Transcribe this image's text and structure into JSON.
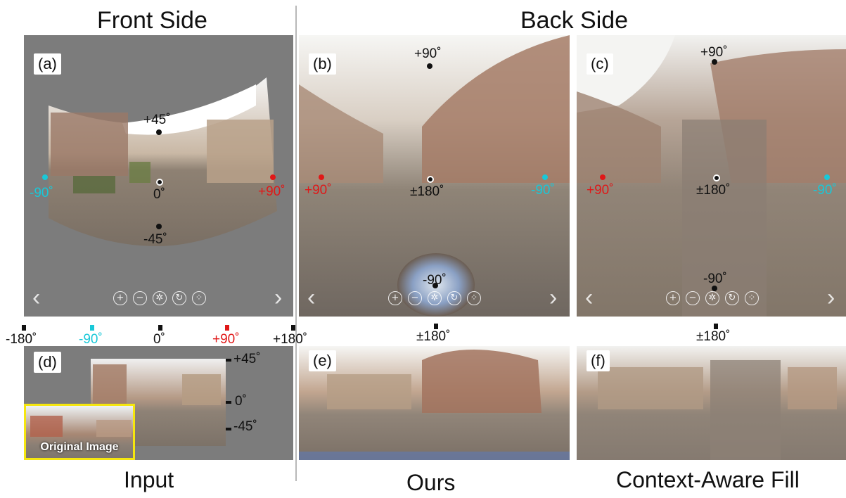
{
  "headings": {
    "front": "Front Side",
    "back": "Back Side"
  },
  "captions": {
    "input": "Input",
    "ours": "Ours",
    "caf": "Context-Aware Fill"
  },
  "panels": {
    "a": {
      "tag": "(a)",
      "labels": {
        "top": "+45˚",
        "center": "0˚",
        "bottom": "-45˚",
        "left": "-90˚",
        "right": "+90˚"
      }
    },
    "b": {
      "tag": "(b)",
      "labels": {
        "top": "+90˚",
        "center": "±180˚",
        "bottom": "-90˚",
        "left": "+90˚",
        "right": "-90˚"
      }
    },
    "c": {
      "tag": "(c)",
      "labels": {
        "top": "+90˚",
        "center": "±180˚",
        "bottom": "-90˚",
        "left": "+90˚",
        "right": "-90˚"
      }
    },
    "d": {
      "tag": "(d)",
      "axis": {
        "m180": "-180˚",
        "m90": "-90˚",
        "zero": "0˚",
        "p90": "+90˚",
        "p180": "+180˚"
      },
      "vaxis": {
        "p45": "+45˚",
        "zero": "0˚",
        "m45": "-45˚"
      },
      "original_label": "Original Image"
    },
    "e": {
      "tag": "(e)",
      "top_label": "±180˚"
    },
    "f": {
      "tag": "(f)",
      "top_label": "±180˚"
    }
  },
  "controls": {
    "prev": "‹",
    "next": "›",
    "zoom_in": "+",
    "zoom_out": "−",
    "center": "✲",
    "rotate": "↻",
    "fullscreen": "⁘"
  }
}
